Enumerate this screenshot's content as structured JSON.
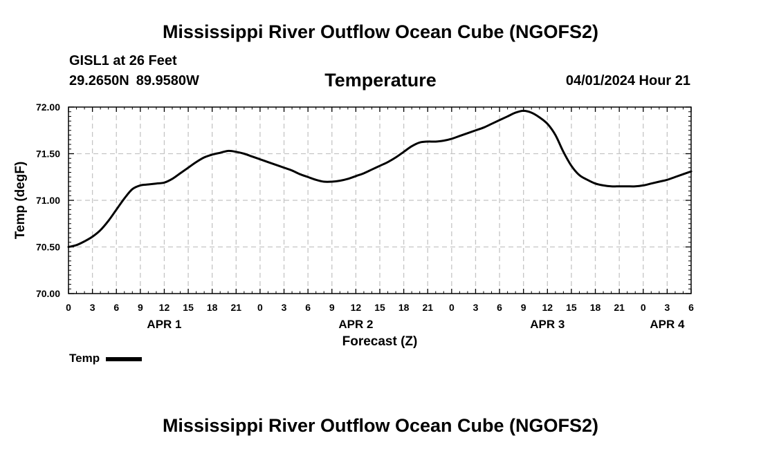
{
  "header": {
    "title": "Mississippi River Outflow Ocean Cube (NGOFS2)",
    "station": "GISL1 at 26 Feet",
    "latitude": "29.2650N",
    "longitude": "89.9580W",
    "variable": "Temperature",
    "datetime": "04/01/2024 Hour 21"
  },
  "footer": {
    "title": "Mississippi River Outflow Ocean Cube (NGOFS2)"
  },
  "legend": {
    "label": "Temp",
    "color": "#000000"
  },
  "chart_data": {
    "type": "line",
    "title": "Temperature",
    "xlabel": "Forecast (Z)",
    "ylabel": "Temp (degF)",
    "ylim": [
      70.0,
      72.0
    ],
    "xlim": [
      0,
      78
    ],
    "x_units": "hours since APR 1 00Z",
    "yticks": [
      "70.00",
      "70.50",
      "71.00",
      "71.50",
      "72.00"
    ],
    "ytick_values": [
      70.0,
      70.5,
      71.0,
      71.5,
      72.0
    ],
    "xtick_hours": [
      0,
      3,
      6,
      9,
      12,
      15,
      18,
      21,
      24,
      27,
      30,
      33,
      36,
      39,
      42,
      45,
      48,
      51,
      54,
      57,
      60,
      63,
      66,
      69,
      72,
      75,
      78
    ],
    "xtick_labels": [
      "0",
      "3",
      "6",
      "9",
      "12",
      "15",
      "18",
      "21",
      "0",
      "3",
      "6",
      "9",
      "12",
      "15",
      "18",
      "21",
      "0",
      "3",
      "6",
      "9",
      "12",
      "15",
      "18",
      "21",
      "0",
      "3",
      "6"
    ],
    "day_labels": [
      {
        "label": "APR 1",
        "hour": 12
      },
      {
        "label": "APR 2",
        "hour": 36
      },
      {
        "label": "APR 3",
        "hour": 60
      },
      {
        "label": "APR 4",
        "hour": 75
      }
    ],
    "grid": true,
    "legend_position": "bottom-left",
    "series": [
      {
        "name": "Temp",
        "color": "#000000",
        "x": [
          0,
          1,
          2,
          3,
          4,
          5,
          6,
          7,
          8,
          9,
          10,
          11,
          12,
          13,
          14,
          15,
          16,
          17,
          18,
          19,
          20,
          21,
          22,
          23,
          24,
          25,
          26,
          27,
          28,
          29,
          30,
          31,
          32,
          33,
          34,
          35,
          36,
          37,
          38,
          39,
          40,
          41,
          42,
          43,
          44,
          45,
          46,
          47,
          48,
          49,
          50,
          51,
          52,
          53,
          54,
          55,
          56,
          57,
          58,
          59,
          60,
          61,
          62,
          63,
          64,
          65,
          66,
          67,
          68,
          69,
          70,
          71,
          72,
          73,
          74,
          75,
          76,
          77,
          78
        ],
        "values": [
          70.5,
          70.52,
          70.56,
          70.61,
          70.68,
          70.78,
          70.9,
          71.02,
          71.12,
          71.16,
          71.17,
          71.18,
          71.19,
          71.23,
          71.29,
          71.35,
          71.41,
          71.46,
          71.49,
          71.51,
          71.53,
          71.52,
          71.5,
          71.47,
          71.44,
          71.41,
          71.38,
          71.35,
          71.32,
          71.28,
          71.25,
          71.22,
          71.2,
          71.2,
          71.21,
          71.23,
          71.26,
          71.29,
          71.33,
          71.37,
          71.41,
          71.46,
          71.52,
          71.58,
          71.62,
          71.63,
          71.63,
          71.64,
          71.66,
          71.69,
          71.72,
          71.75,
          71.78,
          71.82,
          71.86,
          71.9,
          71.94,
          71.96,
          71.94,
          71.89,
          71.82,
          71.7,
          71.52,
          71.37,
          71.27,
          71.22,
          71.18,
          71.16,
          71.15,
          71.15,
          71.15,
          71.15,
          71.16,
          71.18,
          71.2,
          71.22,
          71.25,
          71.28,
          71.31
        ]
      }
    ]
  }
}
